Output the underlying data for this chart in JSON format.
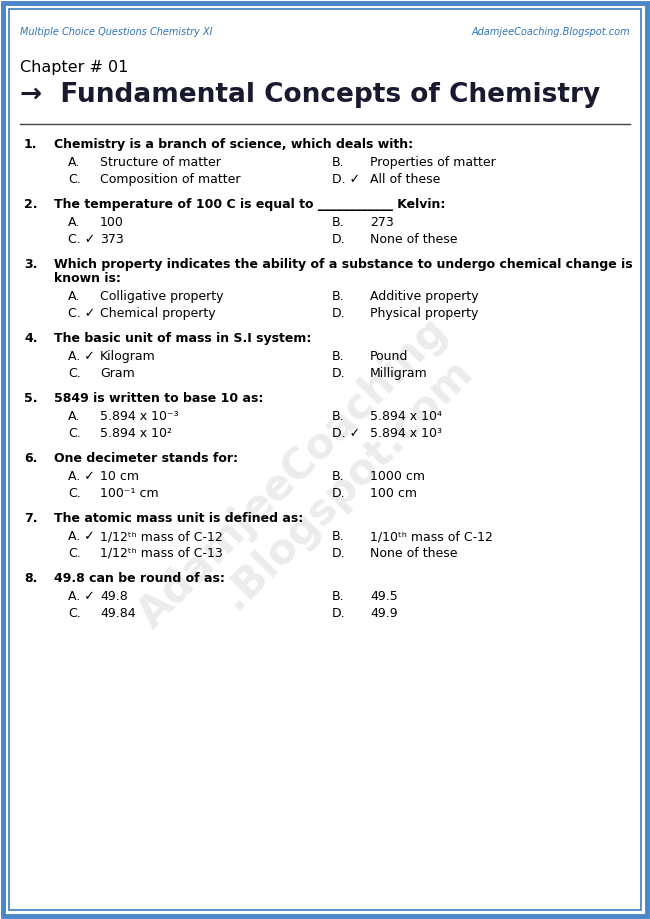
{
  "bg_color": "#ffffff",
  "border_outer_color": "#4a86c8",
  "border_inner_color": "#4a86c8",
  "header_left": "Multiple Choice Questions Chemistry XI",
  "header_right": "AdamjeeCoaching.Blogspot.com",
  "header_color": "#2e74b5",
  "chapter_label": "Chapter # 01",
  "chapter_title": "→  Fundamental Concepts of Chemistry",
  "questions": [
    {
      "num": "1.",
      "q": "Chemistry is a branch of science, which deals with:",
      "q2": null,
      "options": [
        [
          "A.",
          "Structure of matter",
          "B.",
          "Properties of matter"
        ],
        [
          "C.",
          "Composition of matter",
          "D. ✓",
          "All of these"
        ]
      ]
    },
    {
      "num": "2.",
      "q": "The temperature of 100 C is equal to ____________ Kelvin:",
      "q2": null,
      "options": [
        [
          "A.",
          "100",
          "B.",
          "273"
        ],
        [
          "C. ✓",
          "373",
          "D.",
          "None of these"
        ]
      ]
    },
    {
      "num": "3.",
      "q": "Which property indicates the ability of a substance to undergo chemical change is",
      "q2": "known is:",
      "options": [
        [
          "A.",
          "Colligative property",
          "B.",
          "Additive property"
        ],
        [
          "C. ✓",
          "Chemical property",
          "D.",
          "Physical property"
        ]
      ]
    },
    {
      "num": "4.",
      "q": "The basic unit of mass in S.I system:",
      "q2": null,
      "options": [
        [
          "A. ✓",
          "Kilogram",
          "B.",
          "Pound"
        ],
        [
          "C.",
          "Gram",
          "D.",
          "Milligram"
        ]
      ]
    },
    {
      "num": "5.",
      "q": "5849 is written to base 10 as:",
      "q2": null,
      "options": [
        [
          "A.",
          "5.894 x 10⁻³",
          "B.",
          "5.894 x 10⁴"
        ],
        [
          "C.",
          "5.894 x 10²",
          "D. ✓",
          "5.894 x 10³"
        ]
      ]
    },
    {
      "num": "6.",
      "q": "One decimeter stands for:",
      "q2": null,
      "options": [
        [
          "A. ✓",
          "10 cm",
          "B.",
          "1000 cm"
        ],
        [
          "C.",
          "100⁻¹ cm",
          "D.",
          "100 cm"
        ]
      ]
    },
    {
      "num": "7.",
      "q": "The atomic mass unit is defined as:",
      "q2": null,
      "options": [
        [
          "A. ✓",
          "1/12ᵗʰ mass of C-12",
          "B.",
          "1/10ᵗʰ mass of C-12"
        ],
        [
          "C.",
          "1/12ᵗʰ mass of C-13",
          "D.",
          "None of these"
        ]
      ]
    },
    {
      "num": "8.",
      "q": "49.8 can be round of as:",
      "q2": null,
      "options": [
        [
          "A. ✓",
          "49.8",
          "B.",
          "49.5"
        ],
        [
          "C.",
          "49.84",
          "D.",
          "49.9"
        ]
      ]
    }
  ]
}
